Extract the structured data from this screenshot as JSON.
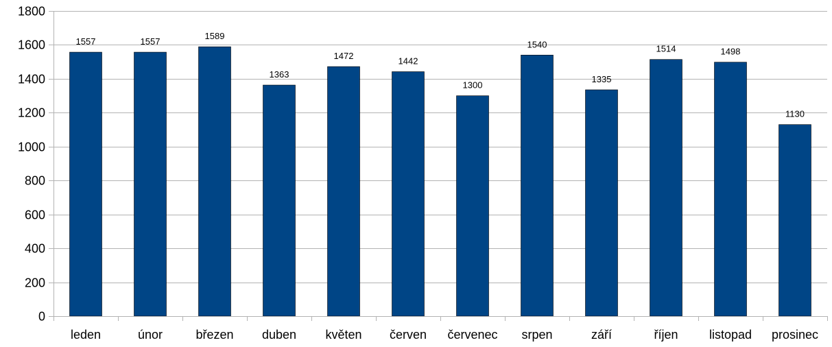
{
  "chart_data": {
    "type": "bar",
    "title": "",
    "xlabel": "",
    "ylabel": "",
    "categories": [
      "leden",
      "únor",
      "březen",
      "duben",
      "květen",
      "červen",
      "červenec",
      "srpen",
      "září",
      "říjen",
      "listopad",
      "prosinec"
    ],
    "values": [
      1557,
      1557,
      1589,
      1363,
      1472,
      1442,
      1300,
      1540,
      1335,
      1514,
      1498,
      1130
    ],
    "ylim": [
      0,
      1800
    ],
    "yticks": [
      0,
      200,
      400,
      600,
      800,
      1000,
      1200,
      1400,
      1600,
      1800
    ],
    "grid": true,
    "data_labels": true,
    "bar_color": "#004586"
  }
}
